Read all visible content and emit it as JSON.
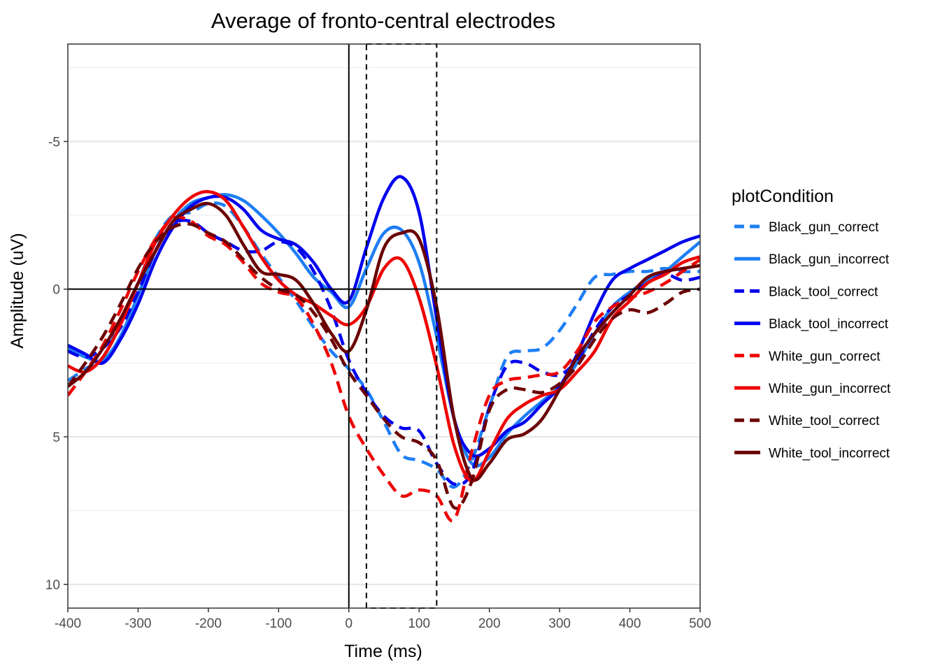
{
  "chart_data": {
    "type": "line",
    "title": "Average of fronto-central electrodes",
    "xlabel": "Time (ms)",
    "ylabel": "Amplitude (uV)",
    "xlim": [
      -400,
      500
    ],
    "ylim": [
      10.8,
      -8.3
    ],
    "y_reversed": true,
    "xticks": [
      -400,
      -300,
      -200,
      -100,
      0,
      100,
      200,
      300,
      400,
      500
    ],
    "xtick_labels": [
      "-400",
      "-300",
      "-200",
      "-100",
      "0",
      "100",
      "200",
      "300",
      "400",
      "500"
    ],
    "yticks": [
      -5,
      0,
      5,
      10
    ],
    "ytick_labels": [
      "-5",
      "0",
      "5",
      "10"
    ],
    "grid": true,
    "reference_lines": {
      "x": 0,
      "y": 0
    },
    "analysis_window": [
      25,
      125
    ],
    "legend_title": "plotCondition",
    "legend_position": "right",
    "series": [
      {
        "name": "Black_gun_correct",
        "color": "#1e7ef5",
        "dash": "dashed",
        "x": [
          -400,
          -375,
          -350,
          -325,
          -300,
          -275,
          -250,
          -225,
          -200,
          -175,
          -150,
          -125,
          -100,
          -75,
          -50,
          -25,
          0,
          25,
          50,
          75,
          100,
          125,
          150,
          175,
          200,
          225,
          250,
          275,
          300,
          325,
          350,
          375,
          400,
          425,
          450,
          475,
          500
        ],
        "y": [
          3.1,
          2.7,
          2.3,
          1.1,
          -0.2,
          -1.7,
          -2.5,
          -2.6,
          -2.9,
          -2.8,
          -2.1,
          -1.2,
          -0.4,
          0.4,
          1.3,
          2.1,
          2.7,
          3.4,
          4.5,
          5.6,
          5.8,
          6.1,
          6.7,
          5.8,
          4.0,
          2.3,
          2.1,
          2.0,
          1.4,
          0.5,
          -0.4,
          -0.5,
          -0.6,
          -0.6,
          -0.7,
          -0.6,
          -0.6
        ]
      },
      {
        "name": "Black_gun_incorrect",
        "color": "#1e7ef5",
        "dash": "solid",
        "x": [
          -400,
          -375,
          -350,
          -325,
          -300,
          -275,
          -250,
          -225,
          -200,
          -175,
          -150,
          -125,
          -100,
          -75,
          -50,
          -25,
          0,
          25,
          50,
          75,
          100,
          125,
          150,
          175,
          200,
          225,
          250,
          275,
          300,
          325,
          350,
          375,
          400,
          425,
          450,
          475,
          500
        ],
        "y": [
          2.0,
          2.3,
          2.4,
          1.6,
          0.2,
          -1.3,
          -2.3,
          -2.9,
          -3.1,
          -3.2,
          -3.0,
          -2.5,
          -1.9,
          -1.2,
          -0.4,
          0.1,
          0.6,
          -0.7,
          -1.9,
          -2.0,
          -0.9,
          1.6,
          4.4,
          5.9,
          5.7,
          4.9,
          4.3,
          3.8,
          3.3,
          2.5,
          1.5,
          0.6,
          0.1,
          -0.3,
          -0.6,
          -1.1,
          -1.6
        ]
      },
      {
        "name": "Black_tool_correct",
        "color": "#0000ee",
        "dash": "dashed",
        "x": [
          -400,
          -375,
          -350,
          -325,
          -300,
          -275,
          -250,
          -225,
          -200,
          -175,
          -150,
          -125,
          -100,
          -75,
          -50,
          -25,
          0,
          25,
          50,
          75,
          100,
          125,
          150,
          175,
          200,
          225,
          250,
          275,
          300,
          325,
          350,
          375,
          400,
          425,
          450,
          475,
          500
        ],
        "y": [
          2.1,
          2.3,
          2.0,
          1.3,
          0.1,
          -1.3,
          -2.2,
          -2.3,
          -1.9,
          -1.6,
          -1.3,
          -1.3,
          -1.6,
          -1.4,
          -0.6,
          0.7,
          2.4,
          3.5,
          4.3,
          4.7,
          4.8,
          5.9,
          6.6,
          6.2,
          4.0,
          2.6,
          2.5,
          2.8,
          2.9,
          2.4,
          1.4,
          0.6,
          0.2,
          -0.2,
          -0.5,
          -0.3,
          -0.4
        ]
      },
      {
        "name": "Black_tool_incorrect",
        "color": "#0000ee",
        "dash": "solid",
        "x": [
          -400,
          -375,
          -350,
          -325,
          -300,
          -275,
          -250,
          -225,
          -200,
          -175,
          -150,
          -125,
          -100,
          -75,
          -50,
          -25,
          0,
          25,
          50,
          75,
          100,
          125,
          150,
          175,
          200,
          225,
          250,
          275,
          300,
          325,
          350,
          375,
          400,
          425,
          450,
          475,
          500
        ],
        "y": [
          1.9,
          2.2,
          2.5,
          1.7,
          0.5,
          -1.0,
          -2.1,
          -2.8,
          -3.1,
          -3.1,
          -2.7,
          -2.0,
          -1.7,
          -1.5,
          -0.9,
          0.0,
          0.4,
          -1.4,
          -3.1,
          -3.8,
          -2.6,
          1.0,
          4.4,
          5.6,
          5.4,
          4.8,
          4.5,
          3.9,
          3.3,
          2.2,
          0.8,
          -0.3,
          -0.7,
          -1.0,
          -1.3,
          -1.6,
          -1.8
        ]
      },
      {
        "name": "White_gun_correct",
        "color": "#ee0000",
        "dash": "dashed",
        "x": [
          -400,
          -375,
          -350,
          -325,
          -300,
          -275,
          -250,
          -225,
          -200,
          -175,
          -150,
          -125,
          -100,
          -75,
          -50,
          -25,
          0,
          25,
          50,
          75,
          100,
          125,
          150,
          175,
          200,
          225,
          250,
          275,
          300,
          325,
          350,
          375,
          400,
          425,
          450,
          475,
          500
        ],
        "y": [
          3.6,
          2.8,
          1.9,
          0.7,
          -0.6,
          -1.7,
          -2.4,
          -2.3,
          -1.8,
          -1.5,
          -0.9,
          -0.2,
          0.1,
          0.3,
          1.2,
          2.5,
          4.3,
          5.4,
          6.3,
          7.0,
          6.8,
          7.0,
          7.8,
          5.5,
          3.6,
          3.1,
          3.0,
          2.9,
          2.8,
          2.1,
          1.1,
          0.6,
          0.3,
          0.1,
          -0.2,
          -0.6,
          -1.0
        ]
      },
      {
        "name": "White_gun_incorrect",
        "color": "#ee0000",
        "dash": "solid",
        "x": [
          -400,
          -375,
          -350,
          -325,
          -300,
          -275,
          -250,
          -225,
          -200,
          -175,
          -150,
          -125,
          -100,
          -75,
          -50,
          -25,
          0,
          25,
          50,
          75,
          100,
          125,
          150,
          175,
          200,
          225,
          250,
          275,
          300,
          325,
          350,
          375,
          400,
          425,
          450,
          475,
          500
        ],
        "y": [
          2.6,
          2.8,
          2.3,
          1.2,
          -0.2,
          -1.6,
          -2.5,
          -3.1,
          -3.3,
          -3.0,
          -2.1,
          -1.1,
          -0.3,
          0.2,
          0.5,
          0.9,
          1.2,
          0.6,
          -0.7,
          -1.0,
          0.3,
          2.6,
          5.3,
          6.5,
          5.5,
          4.4,
          3.9,
          3.6,
          3.4,
          2.8,
          2.1,
          1.0,
          0.4,
          -0.2,
          -0.5,
          -0.9,
          -1.1
        ]
      },
      {
        "name": "White_tool_correct",
        "color": "#6b0000",
        "dash": "dashed",
        "x": [
          -400,
          -375,
          -350,
          -325,
          -300,
          -275,
          -250,
          -225,
          -200,
          -175,
          -150,
          -125,
          -100,
          -75,
          -50,
          -25,
          0,
          25,
          50,
          75,
          100,
          125,
          150,
          175,
          200,
          225,
          250,
          275,
          300,
          325,
          350,
          375,
          400,
          425,
          450,
          475,
          500
        ],
        "y": [
          3.3,
          2.5,
          1.6,
          0.5,
          -0.7,
          -1.6,
          -2.1,
          -2.2,
          -1.9,
          -1.6,
          -1.0,
          -0.4,
          0.0,
          0.2,
          0.8,
          1.7,
          2.8,
          3.6,
          4.4,
          5.0,
          5.2,
          5.8,
          7.4,
          6.5,
          4.1,
          3.4,
          3.4,
          3.5,
          3.2,
          2.6,
          1.7,
          1.0,
          0.7,
          0.8,
          0.5,
          0.1,
          0.0
        ]
      },
      {
        "name": "White_tool_incorrect",
        "color": "#6b0000",
        "dash": "solid",
        "x": [
          -400,
          -375,
          -350,
          -325,
          -300,
          -275,
          -250,
          -225,
          -200,
          -175,
          -150,
          -125,
          -100,
          -75,
          -50,
          -25,
          0,
          25,
          50,
          75,
          100,
          125,
          150,
          175,
          200,
          225,
          250,
          275,
          300,
          325,
          350,
          375,
          400,
          425,
          450,
          475,
          500
        ],
        "y": [
          3.3,
          2.8,
          2.0,
          1.0,
          -0.2,
          -1.3,
          -2.3,
          -2.7,
          -2.9,
          -2.5,
          -1.5,
          -0.6,
          -0.5,
          -0.3,
          0.5,
          1.5,
          2.1,
          0.7,
          -1.4,
          -1.9,
          -1.7,
          0.6,
          4.4,
          6.4,
          5.9,
          5.1,
          4.9,
          4.4,
          3.4,
          2.3,
          1.5,
          0.8,
          0.2,
          -0.4,
          -0.6,
          -0.7,
          -0.8
        ]
      }
    ]
  }
}
